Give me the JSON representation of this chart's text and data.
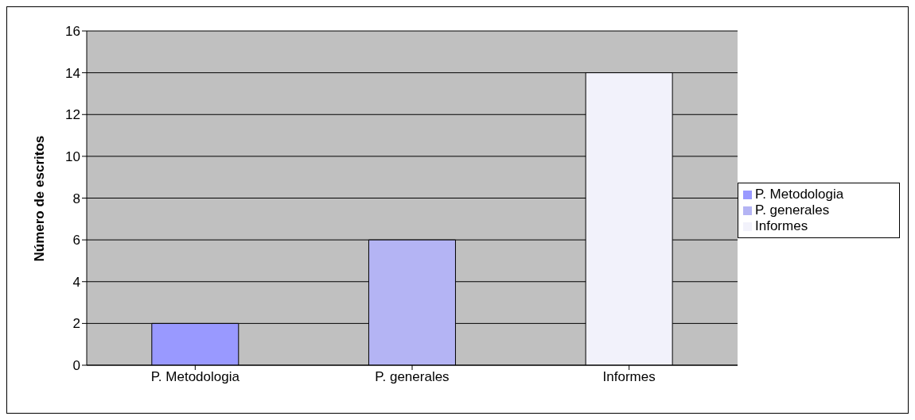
{
  "chart_data": {
    "type": "bar",
    "ylabel": "Número de escritos",
    "categories": [
      "P. Metodologia",
      "P. generales",
      "Informes"
    ],
    "series": [
      {
        "name": "P. Metodologia",
        "color": "#9999ff",
        "values": [
          2,
          null,
          null
        ]
      },
      {
        "name": "P. generales",
        "color": "#b4b4f4",
        "values": [
          null,
          6,
          null
        ]
      },
      {
        "name": "Informes",
        "color": "#f2f2fb",
        "values": [
          null,
          null,
          14
        ]
      }
    ],
    "stacked": true,
    "ylim": [
      0,
      16
    ],
    "yticks": [
      0,
      2,
      4,
      6,
      8,
      10,
      12,
      14,
      16
    ],
    "grid": "y",
    "legend": "right"
  }
}
